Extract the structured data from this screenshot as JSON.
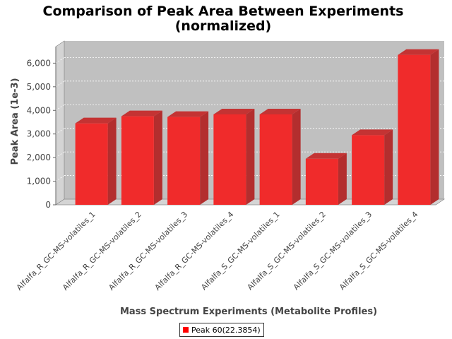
{
  "chart_data": {
    "type": "bar",
    "title_line1": "Comparison of Peak Area Between Experiments",
    "title_line2": "(normalized)",
    "xlabel": "Mass Spectrum Experiments (Metabolite Profiles)",
    "ylabel": "Peak Area (1e-3)",
    "ylim": [
      0,
      6700
    ],
    "yticks": [
      0,
      1000,
      2000,
      3000,
      4000,
      5000,
      6000
    ],
    "ytick_labels": [
      "0",
      "1,000",
      "2,000",
      "3,000",
      "4,000",
      "5,000",
      "6,000"
    ],
    "grid": true,
    "legend_position": "bottom",
    "categories": [
      "Alfalfa_R_GC-MS-volatiles_1",
      "Alfalfa_R_GC-MS-volatiles_2",
      "Alfalfa_R_GC-MS-volatiles_3",
      "Alfalfa_R_GC-MS-volatiles_4",
      "Alfalfa_S_GC-MS-volatiles_1",
      "Alfalfa_S_GC-MS-volatiles_2",
      "Alfalfa_S_GC-MS-volatiles_3",
      "Alfalfa_S_GC-MS-volatiles_4"
    ],
    "series": [
      {
        "name": "Peak 60(22.3854)",
        "color": "#ff0000",
        "values": [
          3450,
          3750,
          3720,
          3830,
          3830,
          1950,
          2950,
          6350
        ]
      }
    ]
  }
}
